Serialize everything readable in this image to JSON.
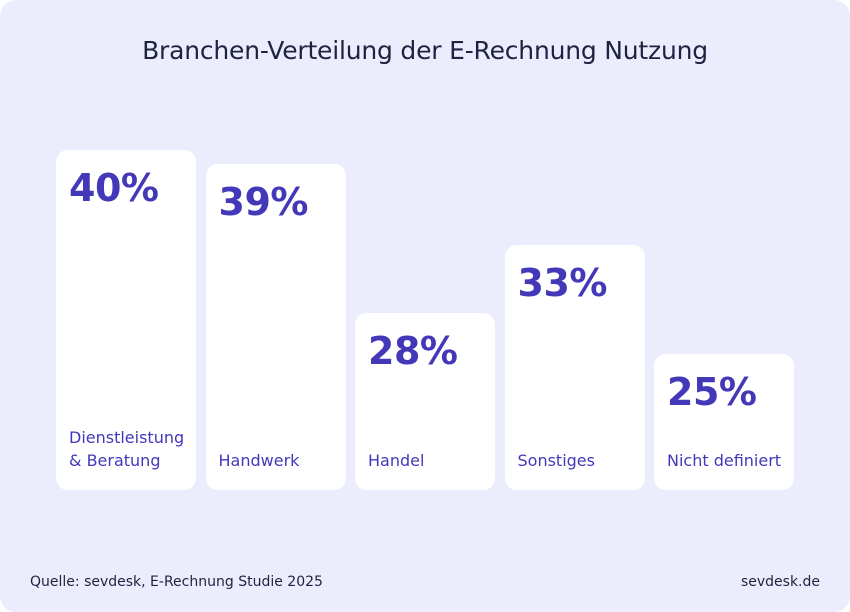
{
  "chart_data": {
    "type": "bar",
    "title": "Branchen-Verteilung der E-Rechnung Nutzung",
    "categories": [
      "Dienstleistung\n& Beratung",
      "Handwerk",
      "Handel",
      "Sonstiges",
      "Nicht definiert"
    ],
    "values": [
      40,
      39,
      28,
      33,
      25
    ],
    "value_labels": [
      "40%",
      "39%",
      "28%",
      "33%",
      "25%"
    ],
    "unit": "%",
    "xlabel": "",
    "ylabel": "",
    "ylim": [
      0,
      40
    ],
    "grid": false,
    "legend": "none"
  },
  "footer": {
    "source": "Quelle: sevdesk, E-Rechnung Studie 2025",
    "brand": "sevdesk.de"
  },
  "colors": {
    "background": "#ebedfd",
    "bar": "#ffffff",
    "value_text": "#4338b8",
    "label_text": "#4338b8",
    "title_text": "#1f2240"
  }
}
